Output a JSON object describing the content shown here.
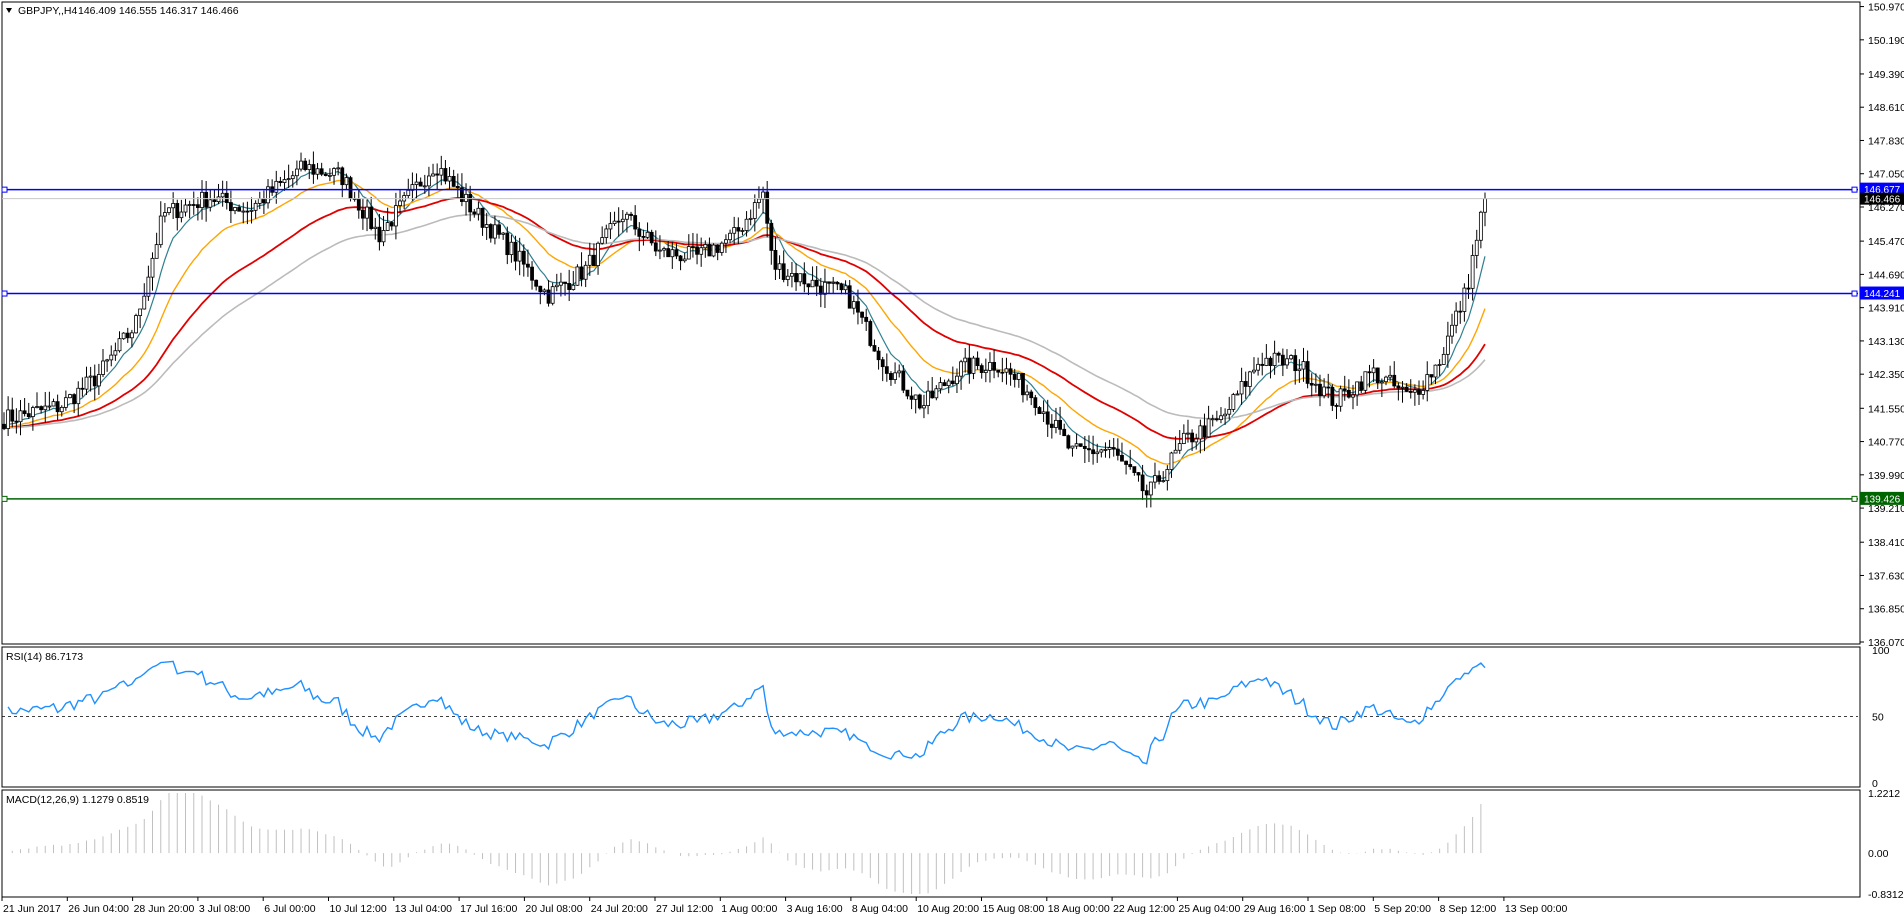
{
  "instrument": {
    "symbol_tf": "GBPJPY,,H4",
    "ohlc": "146.409 146.555 146.317 146.466"
  },
  "colors": {
    "candle": "#000000",
    "level_blue": "#0000ff",
    "level_green": "#006400",
    "ma_fast": "#2f7f8f",
    "ma_mid": "#ffa500",
    "ma_slow": "#e00000",
    "ma_long": "#bbbbbb",
    "rsi": "#1e90ff",
    "macd_hist": "#c0c0c0"
  },
  "chart_data": [
    {
      "type": "candlestick",
      "title": "GBPJPY,,H4",
      "y_ticks": [
        "150.970",
        "150.190",
        "149.390",
        "148.610",
        "147.830",
        "147.050",
        "146.270",
        "145.470",
        "144.690",
        "143.910",
        "143.130",
        "142.350",
        "141.550",
        "140.770",
        "139.990",
        "139.210",
        "138.410",
        "137.630",
        "136.850",
        "136.070"
      ],
      "ylim": [
        136.07,
        151.03
      ],
      "x_labels": [
        "21 Jun 2017",
        "26 Jun 04:00",
        "28 Jun 20:00",
        "3 Jul 08:00",
        "6 Jul 00:00",
        "10 Jul 12:00",
        "13 Jul 04:00",
        "17 Jul 16:00",
        "20 Jul 08:00",
        "24 Jul 20:00",
        "27 Jul 12:00",
        "1 Aug 00:00",
        "3 Aug 16:00",
        "8 Aug 04:00",
        "10 Aug 20:00",
        "15 Aug 08:00",
        "18 Aug 00:00",
        "22 Aug 12:00",
        "25 Aug 04:00",
        "29 Aug 16:00",
        "1 Sep 08:00",
        "5 Sep 20:00",
        "8 Sep 12:00",
        "13 Sep 00:00"
      ],
      "horizontal_levels": [
        {
          "value": 146.677,
          "label": "146.677",
          "color": "blue"
        },
        {
          "value": 144.241,
          "label": "144.241",
          "color": "blue"
        },
        {
          "value": 139.426,
          "label": "139.426",
          "color": "green"
        }
      ],
      "current_price": {
        "value": 146.466,
        "label": "146.466"
      },
      "close_path": [
        {
          "x": 0.0,
          "y": 141.3
        },
        {
          "x": 0.03,
          "y": 141.6
        },
        {
          "x": 0.05,
          "y": 142.3
        },
        {
          "x": 0.07,
          "y": 143.5
        },
        {
          "x": 0.085,
          "y": 146.1
        },
        {
          "x": 0.11,
          "y": 146.5
        },
        {
          "x": 0.13,
          "y": 146.2
        },
        {
          "x": 0.16,
          "y": 147.2
        },
        {
          "x": 0.18,
          "y": 147.0
        },
        {
          "x": 0.2,
          "y": 145.6
        },
        {
          "x": 0.23,
          "y": 147.3
        },
        {
          "x": 0.25,
          "y": 146.2
        },
        {
          "x": 0.27,
          "y": 145.3
        },
        {
          "x": 0.29,
          "y": 144.2
        },
        {
          "x": 0.31,
          "y": 144.8
        },
        {
          "x": 0.33,
          "y": 146.1
        },
        {
          "x": 0.35,
          "y": 145.2
        },
        {
          "x": 0.37,
          "y": 145.1
        },
        {
          "x": 0.39,
          "y": 145.6
        },
        {
          "x": 0.405,
          "y": 146.6
        },
        {
          "x": 0.41,
          "y": 144.9
        },
        {
          "x": 0.43,
          "y": 144.5
        },
        {
          "x": 0.45,
          "y": 144.2
        },
        {
          "x": 0.47,
          "y": 142.6
        },
        {
          "x": 0.49,
          "y": 141.6
        },
        {
          "x": 0.51,
          "y": 142.5
        },
        {
          "x": 0.53,
          "y": 142.6
        },
        {
          "x": 0.55,
          "y": 141.8
        },
        {
          "x": 0.57,
          "y": 140.5
        },
        {
          "x": 0.59,
          "y": 140.6
        },
        {
          "x": 0.61,
          "y": 139.5
        },
        {
          "x": 0.63,
          "y": 140.8
        },
        {
          "x": 0.65,
          "y": 141.3
        },
        {
          "x": 0.67,
          "y": 142.7
        },
        {
          "x": 0.69,
          "y": 142.6
        },
        {
          "x": 0.71,
          "y": 141.7
        },
        {
          "x": 0.73,
          "y": 142.4
        },
        {
          "x": 0.75,
          "y": 141.8
        },
        {
          "x": 0.765,
          "y": 142.6
        },
        {
          "x": 0.78,
          "y": 144.3
        },
        {
          "x": 0.79,
          "y": 146.5
        }
      ]
    },
    {
      "type": "line",
      "title": "RSI(14) 86.7173",
      "y_ticks": [
        "100",
        "50",
        "0"
      ],
      "ylim": [
        0,
        100
      ],
      "reference_line": 50,
      "last_value": 86.7173
    },
    {
      "type": "bar",
      "title": "MACD(12,26,9) 1.1279 0.8519",
      "y_ticks": [
        "1.2212",
        "0.00",
        "-0.8312"
      ],
      "ylim": [
        -0.8312,
        1.2212
      ],
      "macd": 1.1279,
      "signal": 0.8519
    }
  ]
}
